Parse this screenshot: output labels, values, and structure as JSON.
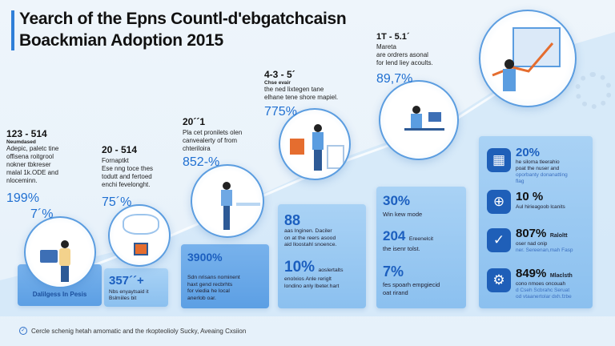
{
  "title": {
    "line1": "Yearch of the Epns Countl-d'ebgatchcaisn",
    "line2": "Boackmian Adoption 2015"
  },
  "timeline": [
    {
      "year": "123 - 514",
      "subtitle": "Neumdased",
      "desc": [
        "Adepic, paletc tine",
        "offisena roitgrool",
        "nokner tbkreser",
        "malal 1k.ODE and",
        "nloceminn."
      ],
      "pct1": "199%",
      "pct2": "7´%"
    },
    {
      "year": "20 - 514",
      "subtitle": "Fornaptkt",
      "desc": [
        "Ese nng toce thes",
        "todutt and fertoed",
        "enchi fevelonght."
      ],
      "pct1": "75´%"
    },
    {
      "year": "20´´1",
      "desc": [
        "Pla cet pronilets olen",
        "canvealerty of from",
        "chteriloira"
      ],
      "pct1": "852-%"
    },
    {
      "year": "4-3 - 5´",
      "subtitle": "Chse evair",
      "desc": [
        "the ned lixtegen tane",
        "elhane tene shore mapiel."
      ],
      "pct1": "775%"
    },
    {
      "year": "1T - 5.1´",
      "subtitle": "Mareta",
      "desc": [
        "are ordrers asonal",
        "for lend liey acoults."
      ],
      "pct1": "89,7%"
    }
  ],
  "columns": {
    "c1_label": "Dalilgess In Pesis",
    "c2": {
      "value": "357´´+",
      "desc": [
        "Nbs enyaytsaid it",
        "Bslmiiles bit"
      ]
    },
    "c3": {
      "value": "3900%",
      "desc": [
        "Sdn nrisans nominent",
        "haxt gend recbrhts",
        "for viedia he local",
        "anerlob oar."
      ]
    },
    "c4": {
      "value1": "88",
      "desc1": [
        "aas lnginen. Daciler",
        "on at the reers asood",
        "aid lloostahl snoence."
      ],
      "value2": "10%",
      "value2_suffix": "aoslertalts",
      "desc2": [
        "enolxios Anle reriglt",
        "londino anly lbeter.hart"
      ]
    },
    "c5": {
      "value1": "30%",
      "desc1": [
        "Win kew mode"
      ],
      "value2": "204",
      "value2_suffix": "Ereenelcit",
      "desc2": [
        "the isenr tolst."
      ],
      "value3": "7%",
      "desc3": [
        "fes spoarh empgiecid",
        "oat rirand"
      ]
    },
    "c6": [
      {
        "icon": "building-icon",
        "value": "20%",
        "desc": [
          "he siloma tleerahio",
          "poat the nuser and",
          "oporbanty donanatting",
          "flag"
        ]
      },
      {
        "icon": "globe-icon",
        "value": "10 %",
        "desc": [
          "Aul hirieagoob lcanits"
        ]
      },
      {
        "icon": "check-icon",
        "value": "807%",
        "suffix": "Raloltt",
        "desc": [
          "oser nad onip",
          "ner. Sereenan,mah Fasp"
        ]
      },
      {
        "icon": "gear-icon",
        "value": "849%",
        "suffix": "Mlaclsth",
        "desc": [
          "cono nmoes oncouah",
          "d Cseh Scbrahc Seruat",
          "od vtaanertolar dxh.fzbe"
        ]
      }
    ]
  },
  "footer": {
    "icon": "check-circle-icon",
    "text": "Cercle schenig hetah amomatic and the rkopteolioly Sucky, Aveaing Cxsiion"
  },
  "colors": {
    "accent": "#1f6fd1",
    "column": "#a9d2f5",
    "icon_bg": "#1f5fb8"
  }
}
